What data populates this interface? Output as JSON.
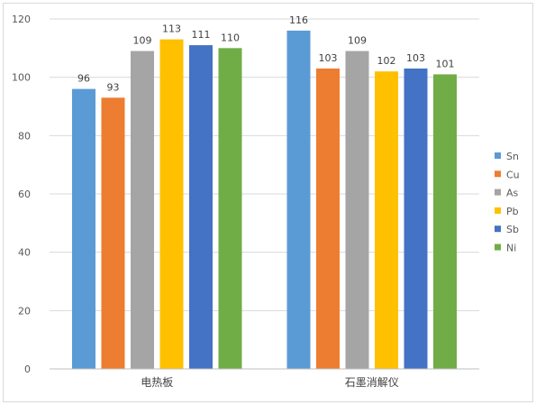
{
  "chart_data": {
    "type": "bar",
    "title": "",
    "xlabel": "",
    "ylabel": "",
    "categories": [
      "电热板",
      "石墨消解仪"
    ],
    "series": [
      {
        "name": "Sn",
        "color": "#5b9bd5",
        "values": [
          96,
          116
        ]
      },
      {
        "name": "Cu",
        "color": "#ed7d31",
        "values": [
          93,
          103
        ]
      },
      {
        "name": "As",
        "color": "#a5a5a5",
        "values": [
          109,
          109
        ]
      },
      {
        "name": "Pb",
        "color": "#ffc000",
        "values": [
          113,
          102
        ]
      },
      {
        "name": "Sb",
        "color": "#4472c4",
        "values": [
          111,
          103
        ]
      },
      {
        "name": "Ni",
        "color": "#70ad47",
        "values": [
          110,
          101
        ]
      }
    ],
    "ylim": [
      0,
      120
    ],
    "yticks": [
      0,
      20,
      40,
      60,
      80,
      100,
      120
    ],
    "grid": true,
    "legend": "right",
    "data_labels": true
  }
}
